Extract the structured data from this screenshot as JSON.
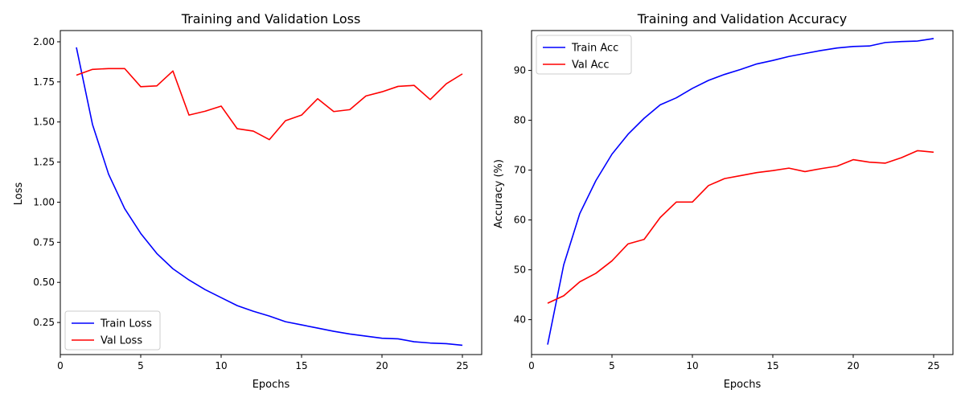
{
  "chart_data": [
    {
      "type": "line",
      "title": "Training and Validation Loss",
      "xlabel": "Epochs",
      "ylabel": "Loss",
      "xlim": [
        0,
        26.2
      ],
      "ylim": [
        0.05,
        2.07
      ],
      "xticks": [
        0,
        5,
        10,
        15,
        20,
        25
      ],
      "xtick_labels": [
        "0",
        "5",
        "10",
        "15",
        "20",
        "25"
      ],
      "yticks": [
        0.25,
        0.5,
        0.75,
        1.0,
        1.25,
        1.5,
        1.75,
        2.0
      ],
      "ytick_labels": [
        "0.25",
        "0.50",
        "0.75",
        "1.00",
        "1.25",
        "1.50",
        "1.75",
        "2.00"
      ],
      "grid": false,
      "legend_position": "lower-left",
      "x": [
        1,
        2,
        3,
        4,
        5,
        6,
        7,
        8,
        9,
        10,
        11,
        12,
        13,
        14,
        15,
        16,
        17,
        18,
        19,
        20,
        21,
        22,
        23,
        24,
        25
      ],
      "series": [
        {
          "name": "Train Loss",
          "color": "#0000ff",
          "values": [
            1.965,
            1.485,
            1.175,
            0.96,
            0.805,
            0.68,
            0.585,
            0.515,
            0.455,
            0.405,
            0.355,
            0.32,
            0.29,
            0.255,
            0.235,
            0.215,
            0.195,
            0.178,
            0.165,
            0.152,
            0.148,
            0.13,
            0.122,
            0.118,
            0.108
          ]
        },
        {
          "name": "Val Loss",
          "color": "#ff0000",
          "values": [
            1.792,
            1.828,
            1.833,
            1.833,
            1.72,
            1.725,
            1.818,
            1.543,
            1.567,
            1.599,
            1.458,
            1.443,
            1.39,
            1.508,
            1.543,
            1.645,
            1.565,
            1.577,
            1.662,
            1.688,
            1.722,
            1.728,
            1.64,
            1.738,
            1.8
          ]
        }
      ]
    },
    {
      "type": "line",
      "title": "Training and Validation Accuracy",
      "xlabel": "Epochs",
      "ylabel": "Accuracy (%)",
      "xlim": [
        0,
        26.2
      ],
      "ylim": [
        33.0,
        98.0
      ],
      "xticks": [
        0,
        5,
        10,
        15,
        20,
        25
      ],
      "xtick_labels": [
        "0",
        "5",
        "10",
        "15",
        "20",
        "25"
      ],
      "yticks": [
        40,
        50,
        60,
        70,
        80,
        90
      ],
      "ytick_labels": [
        "40",
        "50",
        "60",
        "70",
        "80",
        "90"
      ],
      "grid": false,
      "legend_position": "upper-left",
      "x": [
        1,
        2,
        3,
        4,
        5,
        6,
        7,
        8,
        9,
        10,
        11,
        12,
        13,
        14,
        15,
        16,
        17,
        18,
        19,
        20,
        21,
        22,
        23,
        24,
        25
      ],
      "series": [
        {
          "name": "Train Acc",
          "color": "#0000ff",
          "values": [
            35.0,
            51.0,
            61.3,
            67.9,
            73.2,
            77.2,
            80.4,
            83.1,
            84.5,
            86.4,
            88.0,
            89.2,
            90.2,
            91.3,
            92.0,
            92.8,
            93.4,
            94.0,
            94.5,
            94.8,
            94.9,
            95.6,
            95.8,
            95.9,
            96.4
          ]
        },
        {
          "name": "Val Acc",
          "color": "#ff0000",
          "values": [
            43.3,
            44.8,
            47.6,
            49.3,
            51.8,
            55.2,
            56.1,
            60.5,
            63.6,
            63.6,
            66.9,
            68.3,
            68.9,
            69.5,
            69.9,
            70.4,
            69.7,
            70.3,
            70.8,
            72.1,
            71.6,
            71.4,
            72.5,
            73.9,
            73.6
          ]
        }
      ]
    }
  ]
}
